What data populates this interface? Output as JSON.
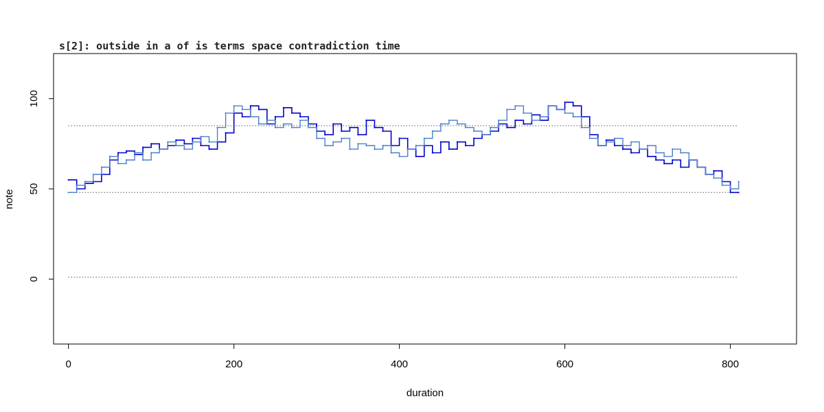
{
  "chart_data": {
    "type": "line",
    "title": "s[2]: outside in a of is terms space contradiction time",
    "xlabel": "duration",
    "ylabel": "note",
    "xlim": [
      -18,
      880
    ],
    "ylim": [
      -36,
      125
    ],
    "xticks": [
      0,
      200,
      400,
      600,
      800
    ],
    "yticks": [
      0,
      50,
      100
    ],
    "xtick_labels": [
      "0",
      "200",
      "400",
      "600",
      "800"
    ],
    "ytick_labels": [
      "0",
      "50",
      "100"
    ],
    "grid": false,
    "reference_lines": [
      {
        "y": 1,
        "x_from": 0,
        "x_to": 810,
        "style": "dotted"
      },
      {
        "y": 48,
        "x_from": 0,
        "x_to": 810,
        "style": "dotted"
      },
      {
        "y": 85,
        "x_from": 0,
        "x_to": 810,
        "style": "dotted"
      }
    ],
    "series": [
      {
        "color": "#0000cc",
        "step": true,
        "x": [
          0,
          10,
          20,
          30,
          40,
          50,
          60,
          70,
          80,
          90,
          100,
          110,
          120,
          130,
          140,
          150,
          160,
          170,
          180,
          190,
          200,
          210,
          220,
          230,
          240,
          250,
          260,
          270,
          280,
          290,
          300,
          310,
          320,
          330,
          340,
          350,
          360,
          370,
          380,
          390,
          400,
          410,
          420,
          430,
          440,
          450,
          460,
          470,
          480,
          490,
          500,
          510,
          520,
          530,
          540,
          550,
          560,
          570,
          580,
          590,
          600,
          610,
          620,
          630,
          640,
          650,
          660,
          670,
          680,
          690,
          700,
          710,
          720,
          730,
          740,
          750,
          760,
          770,
          780,
          790,
          800,
          810
        ],
        "y": [
          55,
          50,
          53,
          54,
          58,
          66,
          70,
          71,
          69,
          73,
          75,
          72,
          74,
          77,
          75,
          78,
          74,
          72,
          76,
          81,
          92,
          90,
          96,
          94,
          86,
          90,
          95,
          92,
          90,
          86,
          82,
          80,
          86,
          82,
          84,
          80,
          88,
          84,
          82,
          74,
          78,
          72,
          68,
          74,
          70,
          76,
          72,
          76,
          74,
          78,
          80,
          82,
          86,
          84,
          88,
          86,
          91,
          88,
          96,
          94,
          98,
          96,
          90,
          80,
          74,
          77,
          74,
          72,
          70,
          72,
          68,
          66,
          64,
          66,
          62,
          66,
          62,
          58,
          60,
          54,
          48,
          48
        ]
      },
      {
        "color": "#4a7fc9",
        "step": true,
        "x": [
          0,
          10,
          20,
          30,
          40,
          50,
          60,
          70,
          80,
          90,
          100,
          110,
          120,
          130,
          140,
          150,
          160,
          170,
          180,
          190,
          200,
          210,
          220,
          230,
          240,
          250,
          260,
          270,
          280,
          290,
          300,
          310,
          320,
          330,
          340,
          350,
          360,
          370,
          380,
          390,
          400,
          410,
          420,
          430,
          440,
          450,
          460,
          470,
          480,
          490,
          500,
          510,
          520,
          530,
          540,
          550,
          560,
          570,
          580,
          590,
          600,
          610,
          620,
          630,
          640,
          650,
          660,
          670,
          680,
          690,
          700,
          710,
          720,
          730,
          740,
          750,
          760,
          770,
          780,
          790,
          800,
          810
        ],
        "y": [
          48,
          52,
          54,
          58,
          62,
          68,
          64,
          66,
          70,
          66,
          70,
          72,
          76,
          74,
          72,
          76,
          79,
          76,
          84,
          92,
          96,
          94,
          90,
          86,
          88,
          84,
          86,
          84,
          88,
          84,
          78,
          74,
          76,
          78,
          72,
          75,
          74,
          72,
          74,
          70,
          68,
          72,
          74,
          78,
          82,
          86,
          88,
          86,
          84,
          82,
          80,
          84,
          88,
          94,
          96,
          92,
          88,
          90,
          96,
          94,
          92,
          90,
          84,
          78,
          74,
          76,
          78,
          74,
          76,
          72,
          74,
          70,
          68,
          72,
          70,
          66,
          62,
          58,
          56,
          52,
          50,
          54
        ]
      }
    ]
  }
}
